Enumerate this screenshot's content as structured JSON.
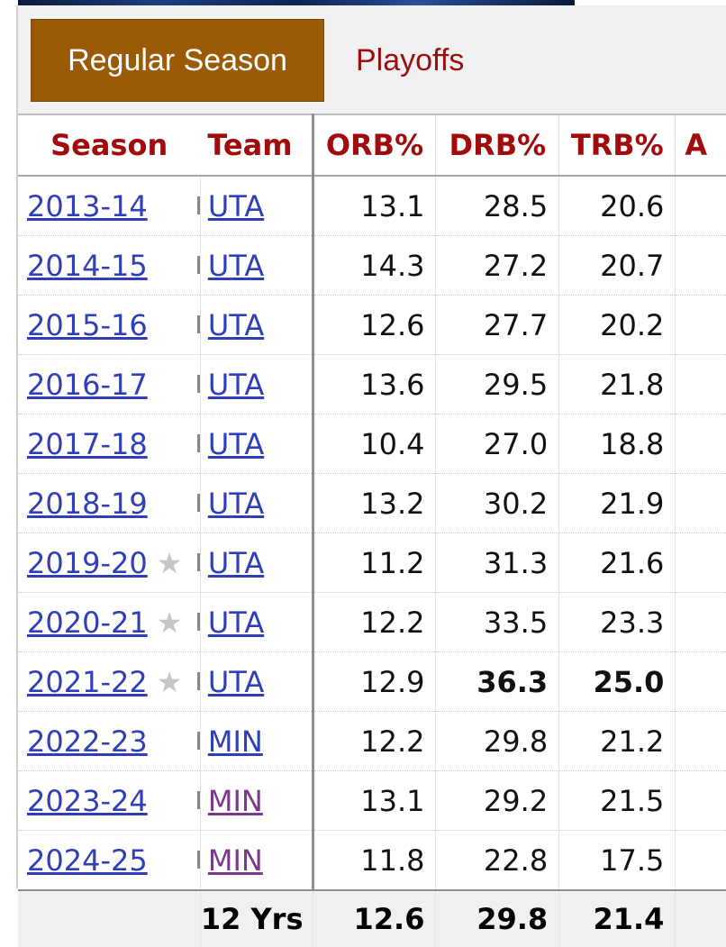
{
  "tabs": {
    "regular_season": "Regular Season",
    "playoffs": "Playoffs"
  },
  "table": {
    "headers": {
      "season": "Season",
      "team": "Team",
      "orb": "ORB%",
      "drb": "DRB%",
      "trb": "TRB%",
      "ast": "A"
    },
    "rows": [
      {
        "season": "2013-14",
        "all_star": false,
        "team": "UTA",
        "team_visited": false,
        "orb": "13.1",
        "drb": "28.5",
        "trb": "20.6",
        "drb_bold": false,
        "trb_bold": false
      },
      {
        "season": "2014-15",
        "all_star": false,
        "team": "UTA",
        "team_visited": false,
        "orb": "14.3",
        "drb": "27.2",
        "trb": "20.7",
        "drb_bold": false,
        "trb_bold": false
      },
      {
        "season": "2015-16",
        "all_star": false,
        "team": "UTA",
        "team_visited": false,
        "orb": "12.6",
        "drb": "27.7",
        "trb": "20.2",
        "drb_bold": false,
        "trb_bold": false
      },
      {
        "season": "2016-17",
        "all_star": false,
        "team": "UTA",
        "team_visited": false,
        "orb": "13.6",
        "drb": "29.5",
        "trb": "21.8",
        "drb_bold": false,
        "trb_bold": false
      },
      {
        "season": "2017-18",
        "all_star": false,
        "team": "UTA",
        "team_visited": false,
        "orb": "10.4",
        "drb": "27.0",
        "trb": "18.8",
        "drb_bold": false,
        "trb_bold": false
      },
      {
        "season": "2018-19",
        "all_star": false,
        "team": "UTA",
        "team_visited": false,
        "orb": "13.2",
        "drb": "30.2",
        "trb": "21.9",
        "drb_bold": false,
        "trb_bold": false
      },
      {
        "season": "2019-20",
        "all_star": true,
        "team": "UTA",
        "team_visited": false,
        "orb": "11.2",
        "drb": "31.3",
        "trb": "21.6",
        "drb_bold": false,
        "trb_bold": false
      },
      {
        "season": "2020-21",
        "all_star": true,
        "team": "UTA",
        "team_visited": false,
        "orb": "12.2",
        "drb": "33.5",
        "trb": "23.3",
        "drb_bold": false,
        "trb_bold": false
      },
      {
        "season": "2021-22",
        "all_star": true,
        "team": "UTA",
        "team_visited": false,
        "orb": "12.9",
        "drb": "36.3",
        "trb": "25.0",
        "drb_bold": true,
        "trb_bold": true
      },
      {
        "season": "2022-23",
        "all_star": false,
        "team": "MIN",
        "team_visited": false,
        "orb": "12.2",
        "drb": "29.8",
        "trb": "21.2",
        "drb_bold": false,
        "trb_bold": false
      },
      {
        "season": "2023-24",
        "all_star": false,
        "team": "MIN",
        "team_visited": true,
        "orb": "13.1",
        "drb": "29.2",
        "trb": "21.5",
        "drb_bold": false,
        "trb_bold": false
      },
      {
        "season": "2024-25",
        "all_star": false,
        "team": "MIN",
        "team_visited": true,
        "orb": "11.8",
        "drb": "22.8",
        "trb": "17.5",
        "drb_bold": false,
        "trb_bold": false
      }
    ],
    "footer": {
      "label": "12 Yrs",
      "orb": "12.6",
      "drb": "29.8",
      "trb": "21.4"
    }
  },
  "colors": {
    "active_tab_bg": "#9b5a05",
    "header_text": "#a10b0b",
    "link": "#2f3fb8",
    "visited_link": "#7a3a8c",
    "star": "#c6c6c6"
  },
  "icons": {
    "all_star": "star-icon"
  }
}
